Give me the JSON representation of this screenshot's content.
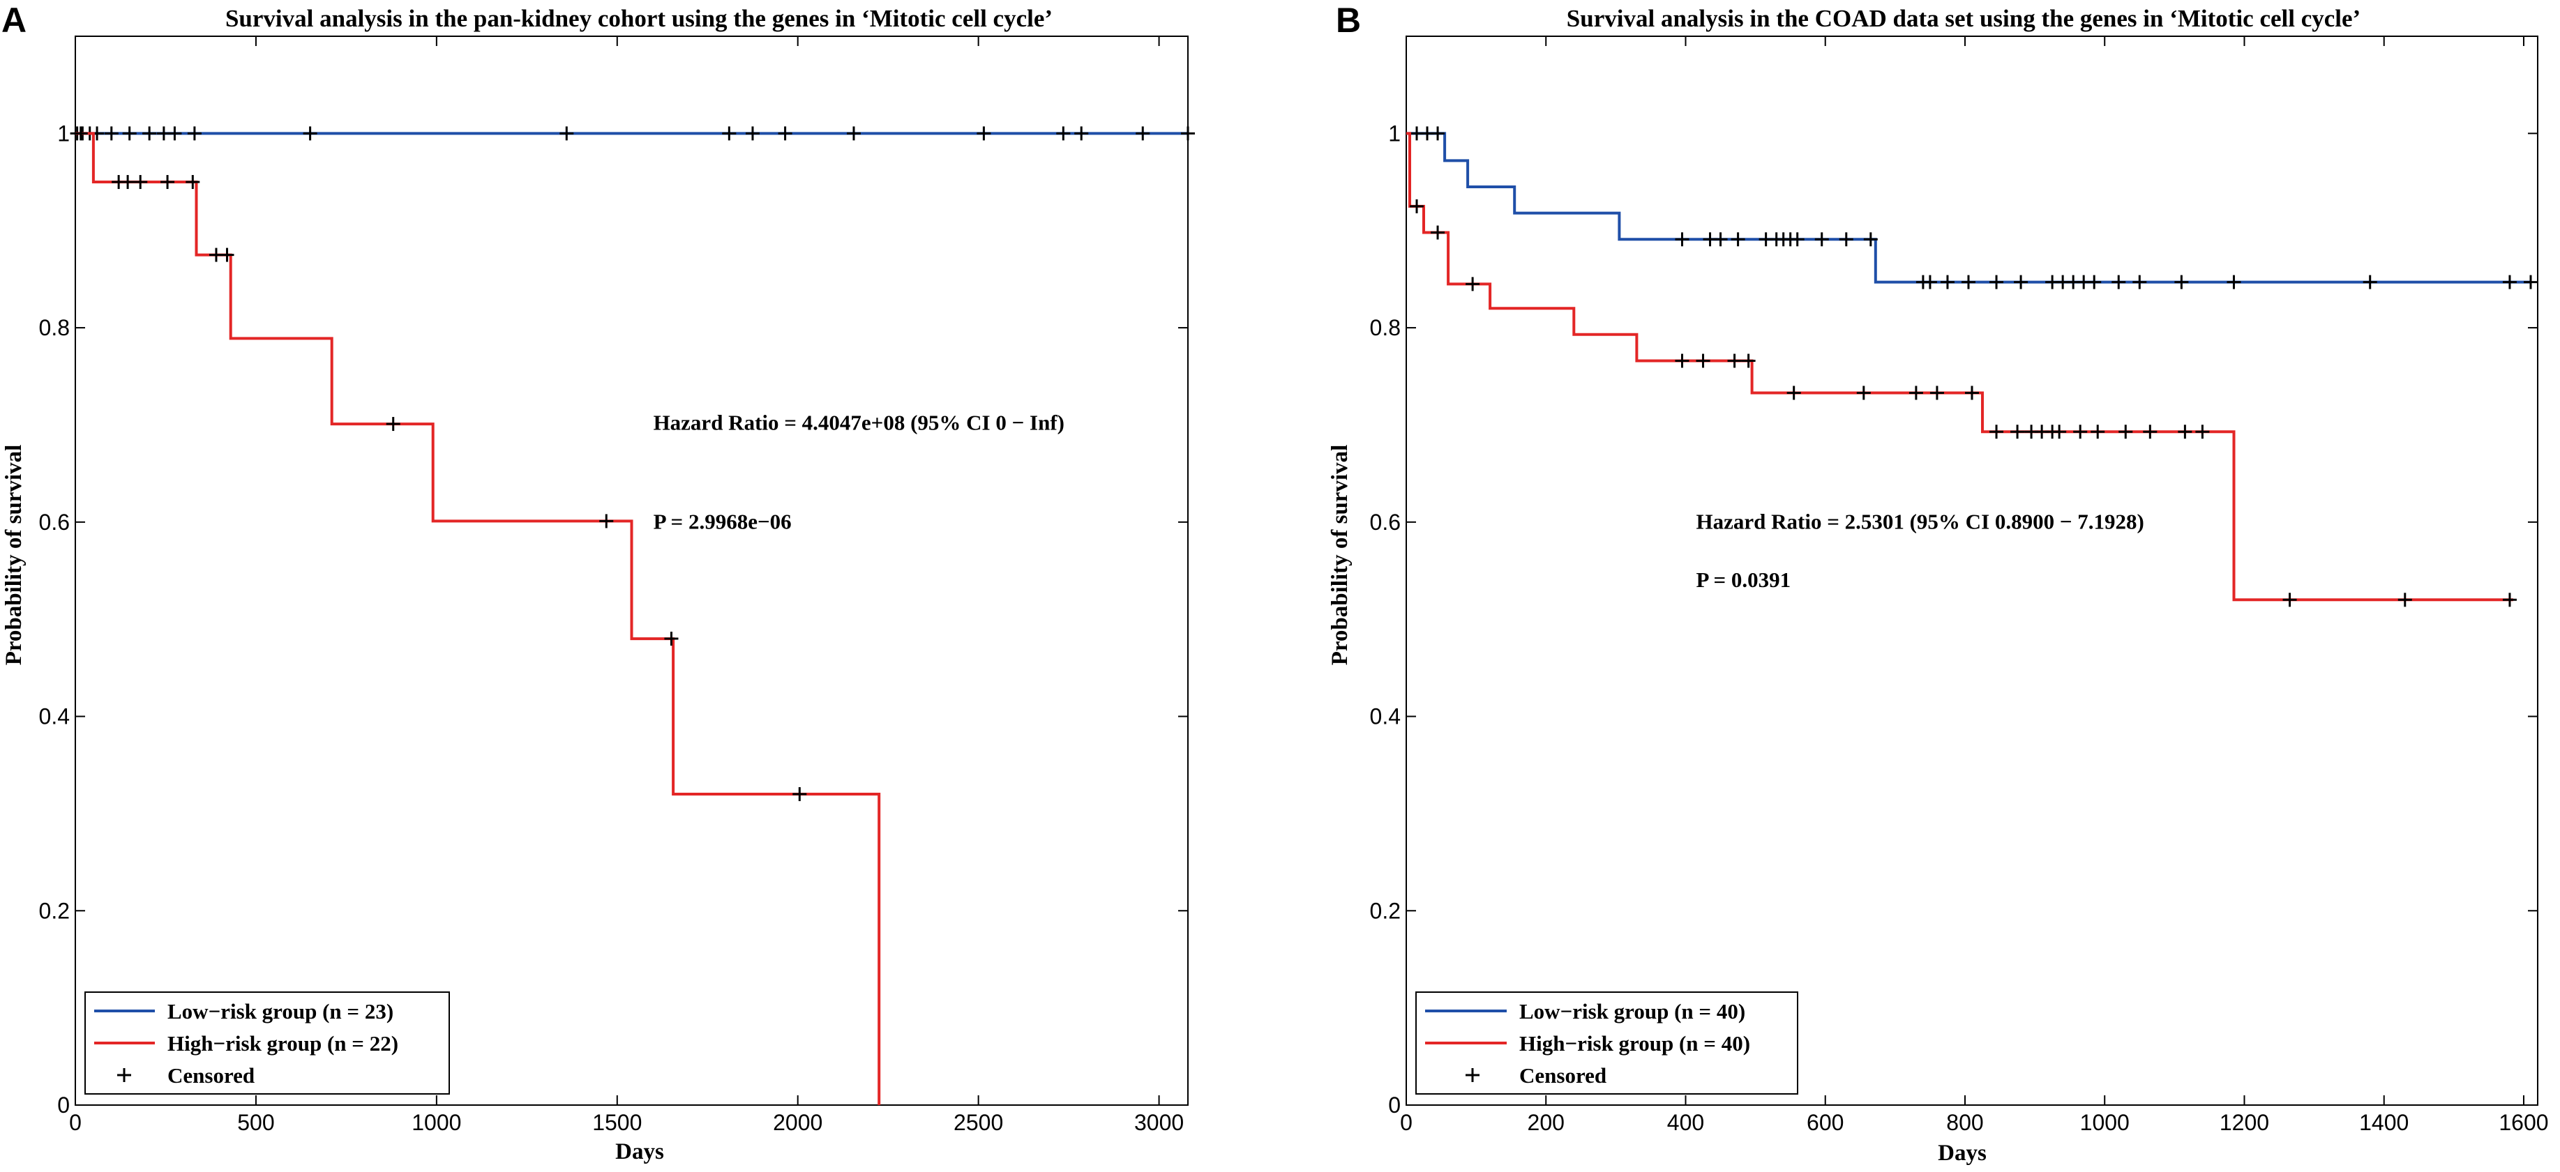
{
  "chart_data": [
    {
      "type": "line",
      "panel_letter": "A",
      "title": "Survival analysis in the pan-kidney cohort using the genes in ‘Mitotic cell cycle’",
      "xlabel": "Days",
      "ylabel": "Probability of survival",
      "xlim": [
        0,
        3080
      ],
      "ylim": [
        0,
        1.1
      ],
      "xticks": [
        0,
        500,
        1000,
        1500,
        2000,
        2500,
        3000
      ],
      "xtick_labels": [
        "0",
        "500",
        "1000",
        "1500",
        "2000",
        "2500",
        "3000"
      ],
      "yticks": [
        0,
        0.2,
        0.4,
        0.6,
        0.8,
        1
      ],
      "ytick_labels": [
        "0",
        "0.2",
        "0.4",
        "0.6",
        "0.8",
        "1"
      ],
      "annotations": [
        {
          "id": "hazard",
          "text": "Hazard Ratio = 4.4047e+08 (95% CI 0 − Inf)",
          "x": 1600,
          "y": 0.695
        },
        {
          "id": "pvalue",
          "text": "P = 2.9968e−06",
          "x": 1600,
          "y": 0.593
        }
      ],
      "legend": {
        "position": "bottom-left",
        "entries": [
          {
            "label": "Low−risk group (n = 23)",
            "kind": "line",
            "color": "#1f4fa8"
          },
          {
            "label": "High−risk group (n = 22)",
            "kind": "line",
            "color": "#e32626"
          },
          {
            "label": "Censored",
            "kind": "marker",
            "color": "#000000"
          }
        ]
      },
      "series": [
        {
          "name": "Low−risk group (n = 23)",
          "color": "#1f4fa8",
          "steps": [
            [
              0,
              1
            ],
            [
              3080,
              1
            ]
          ],
          "censored": [
            [
              5,
              1
            ],
            [
              20,
              1
            ],
            [
              40,
              1
            ],
            [
              60,
              1
            ],
            [
              100,
              1
            ],
            [
              150,
              1
            ],
            [
              205,
              1
            ],
            [
              245,
              1
            ],
            [
              275,
              1
            ],
            [
              330,
              1
            ],
            [
              650,
              1
            ],
            [
              1360,
              1
            ],
            [
              1810,
              1
            ],
            [
              1875,
              1
            ],
            [
              1965,
              1
            ],
            [
              2155,
              1
            ],
            [
              2515,
              1
            ],
            [
              2735,
              1
            ],
            [
              2785,
              1
            ],
            [
              2955,
              1
            ],
            [
              3080,
              1
            ]
          ]
        },
        {
          "name": "High−risk group (n = 22)",
          "color": "#e32626",
          "steps": [
            [
              0,
              1
            ],
            [
              50,
              1
            ],
            [
              50,
              0.95
            ],
            [
              335,
              0.95
            ],
            [
              335,
              0.875
            ],
            [
              430,
              0.875
            ],
            [
              430,
              0.789
            ],
            [
              710,
              0.789
            ],
            [
              710,
              0.701
            ],
            [
              990,
              0.701
            ],
            [
              990,
              0.601
            ],
            [
              1540,
              0.601
            ],
            [
              1540,
              0.48
            ],
            [
              1655,
              0.48
            ],
            [
              1655,
              0.32
            ],
            [
              2225,
              0.32
            ],
            [
              2225,
              0
            ]
          ],
          "censored": [
            [
              15,
              1
            ],
            [
              120,
              0.95
            ],
            [
              145,
              0.95
            ],
            [
              180,
              0.95
            ],
            [
              255,
              0.95
            ],
            [
              325,
              0.95
            ],
            [
              390,
              0.875
            ],
            [
              420,
              0.875
            ],
            [
              880,
              0.701
            ],
            [
              1470,
              0.601
            ],
            [
              1650,
              0.48
            ],
            [
              2005,
              0.32
            ]
          ]
        }
      ]
    },
    {
      "type": "line",
      "panel_letter": "B",
      "title": "Survival analysis in the COAD data set using the genes in ‘Mitotic cell cycle’",
      "xlabel": "Days",
      "ylabel": "Probability of survival",
      "xlim": [
        0,
        1620
      ],
      "ylim": [
        0,
        1.1
      ],
      "xticks": [
        0,
        200,
        400,
        600,
        800,
        1000,
        1200,
        1400,
        1600
      ],
      "xtick_labels": [
        "0",
        "200",
        "400",
        "600",
        "800",
        "1000",
        "1200",
        "1400",
        "1600"
      ],
      "yticks": [
        0,
        0.2,
        0.4,
        0.6,
        0.8,
        1
      ],
      "ytick_labels": [
        "0",
        "0.2",
        "0.4",
        "0.6",
        "0.8",
        "1"
      ],
      "annotations": [
        {
          "id": "hazard",
          "text": "Hazard Ratio = 2.5301 (95% CI 0.8900 − 7.1928)",
          "x": 415,
          "y": 0.593
        },
        {
          "id": "pvalue",
          "text": "P = 0.0391",
          "x": 415,
          "y": 0.533
        }
      ],
      "legend": {
        "position": "bottom-left",
        "entries": [
          {
            "label": "Low−risk group (n = 40)",
            "kind": "line",
            "color": "#1f4fa8"
          },
          {
            "label": "High−risk group (n = 40)",
            "kind": "line",
            "color": "#e32626"
          },
          {
            "label": "Censored",
            "kind": "marker",
            "color": "#000000"
          }
        ]
      },
      "series": [
        {
          "name": "Low−risk group (n = 40)",
          "color": "#1f4fa8",
          "steps": [
            [
              0,
              1
            ],
            [
              55,
              1
            ],
            [
              55,
              0.972
            ],
            [
              88,
              0.972
            ],
            [
              88,
              0.945
            ],
            [
              155,
              0.945
            ],
            [
              155,
              0.918
            ],
            [
              305,
              0.918
            ],
            [
              305,
              0.891
            ],
            [
              672,
              0.891
            ],
            [
              672,
              0.847
            ],
            [
              1610,
              0.847
            ]
          ],
          "censored": [
            [
              15,
              1
            ],
            [
              30,
              1
            ],
            [
              45,
              1
            ],
            [
              395,
              0.891
            ],
            [
              435,
              0.891
            ],
            [
              450,
              0.891
            ],
            [
              475,
              0.891
            ],
            [
              515,
              0.891
            ],
            [
              530,
              0.891
            ],
            [
              540,
              0.891
            ],
            [
              550,
              0.891
            ],
            [
              560,
              0.891
            ],
            [
              595,
              0.891
            ],
            [
              630,
              0.891
            ],
            [
              665,
              0.891
            ],
            [
              740,
              0.847
            ],
            [
              750,
              0.847
            ],
            [
              775,
              0.847
            ],
            [
              805,
              0.847
            ],
            [
              845,
              0.847
            ],
            [
              880,
              0.847
            ],
            [
              925,
              0.847
            ],
            [
              940,
              0.847
            ],
            [
              955,
              0.847
            ],
            [
              970,
              0.847
            ],
            [
              985,
              0.847
            ],
            [
              1020,
              0.847
            ],
            [
              1050,
              0.847
            ],
            [
              1110,
              0.847
            ],
            [
              1185,
              0.847
            ],
            [
              1380,
              0.847
            ],
            [
              1580,
              0.847
            ],
            [
              1610,
              0.847
            ]
          ]
        },
        {
          "name": "High−risk group (n = 40)",
          "color": "#e32626",
          "steps": [
            [
              0,
              1
            ],
            [
              5,
              1
            ],
            [
              5,
              0.925
            ],
            [
              25,
              0.925
            ],
            [
              25,
              0.898
            ],
            [
              60,
              0.898
            ],
            [
              60,
              0.845
            ],
            [
              120,
              0.845
            ],
            [
              120,
              0.82
            ],
            [
              240,
              0.82
            ],
            [
              240,
              0.793
            ],
            [
              330,
              0.793
            ],
            [
              330,
              0.766
            ],
            [
              495,
              0.766
            ],
            [
              495,
              0.733
            ],
            [
              825,
              0.733
            ],
            [
              825,
              0.693
            ],
            [
              1185,
              0.693
            ],
            [
              1185,
              0.52
            ],
            [
              1585,
              0.52
            ]
          ],
          "censored": [
            [
              15,
              0.925
            ],
            [
              45,
              0.898
            ],
            [
              95,
              0.845
            ],
            [
              395,
              0.766
            ],
            [
              425,
              0.766
            ],
            [
              470,
              0.766
            ],
            [
              490,
              0.766
            ],
            [
              555,
              0.733
            ],
            [
              655,
              0.733
            ],
            [
              730,
              0.733
            ],
            [
              760,
              0.733
            ],
            [
              810,
              0.733
            ],
            [
              845,
              0.693
            ],
            [
              875,
              0.693
            ],
            [
              895,
              0.693
            ],
            [
              910,
              0.693
            ],
            [
              925,
              0.693
            ],
            [
              935,
              0.693
            ],
            [
              965,
              0.693
            ],
            [
              990,
              0.693
            ],
            [
              1030,
              0.693
            ],
            [
              1065,
              0.693
            ],
            [
              1115,
              0.693
            ],
            [
              1140,
              0.693
            ],
            [
              1265,
              0.52
            ],
            [
              1430,
              0.52
            ],
            [
              1580,
              0.52
            ]
          ]
        }
      ]
    }
  ]
}
